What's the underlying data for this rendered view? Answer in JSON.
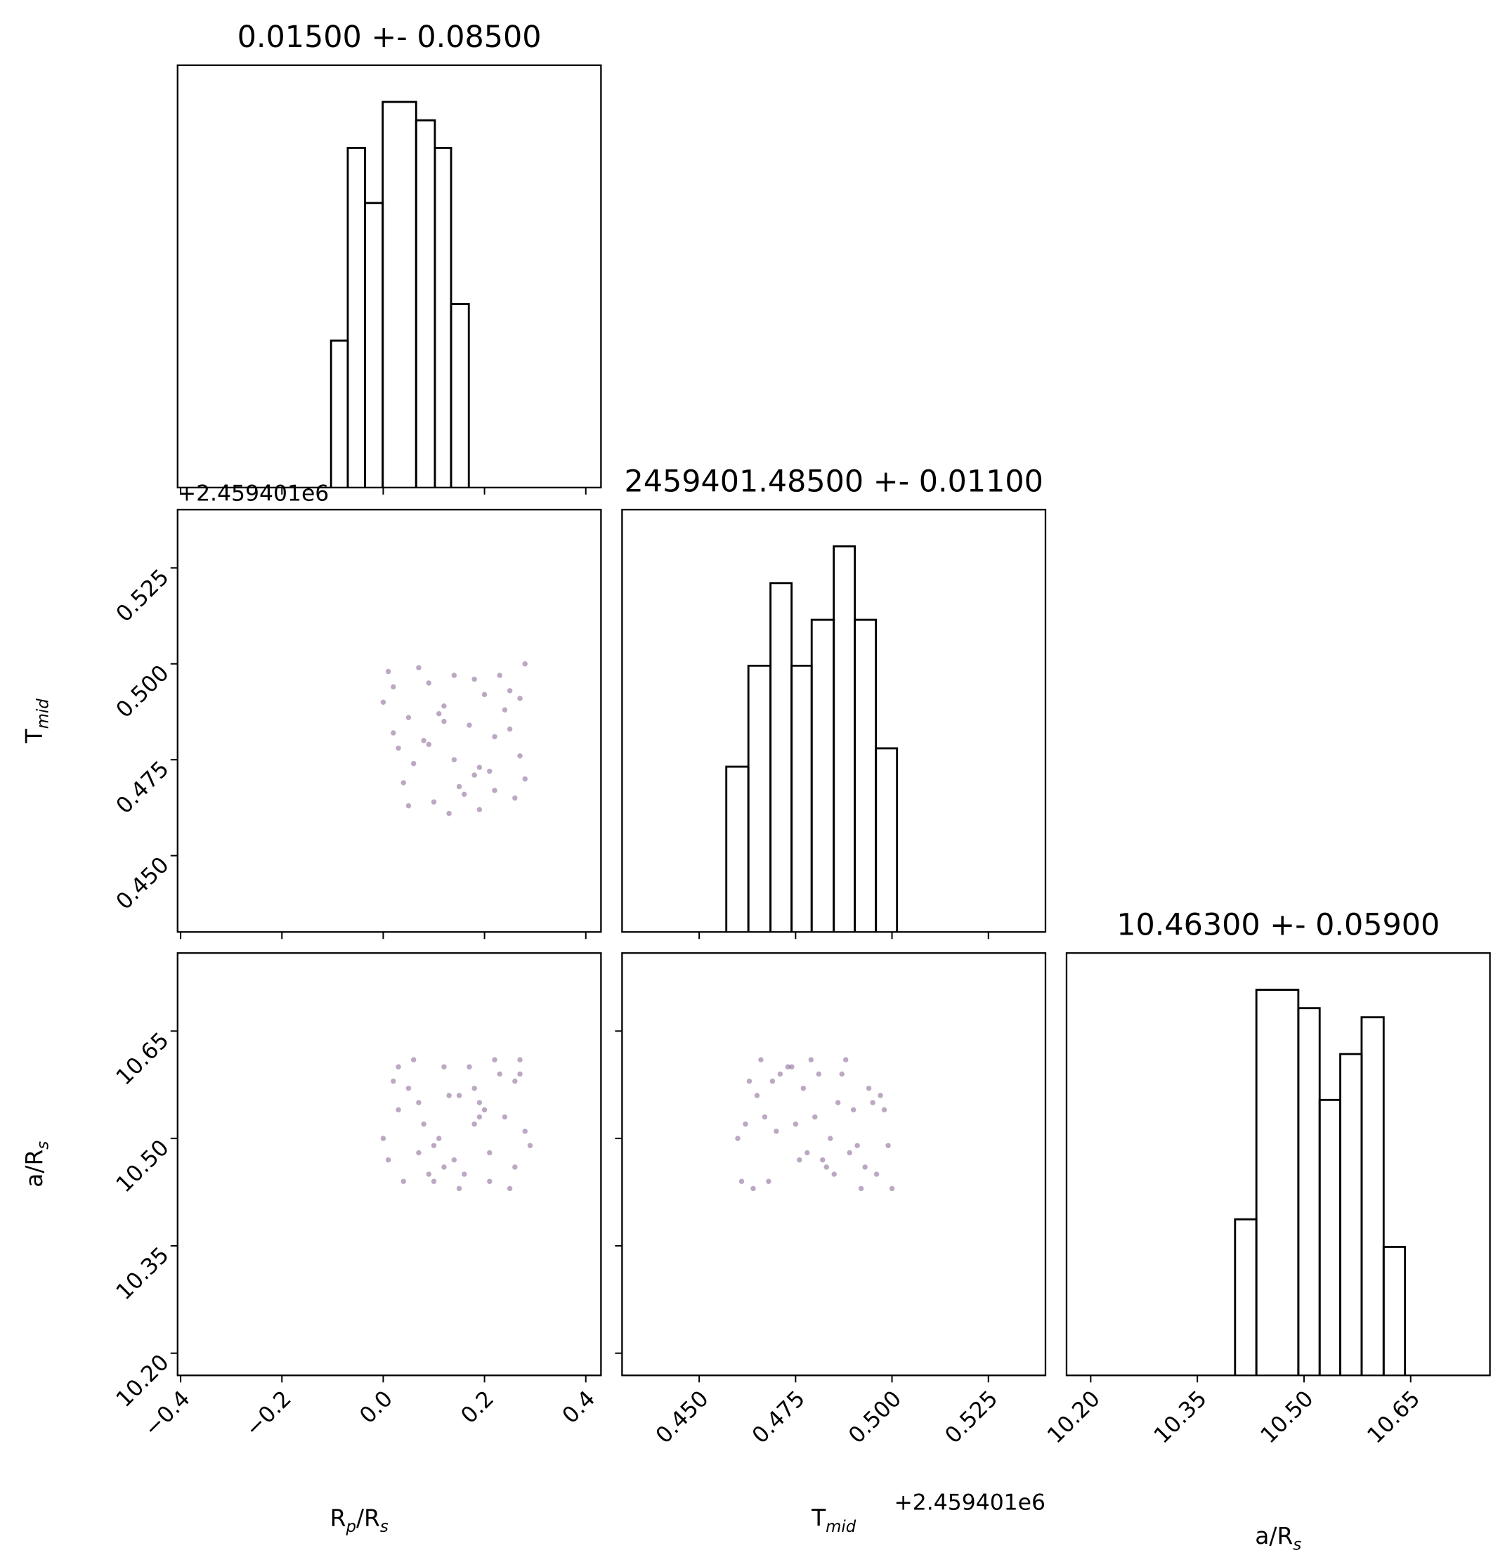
{
  "chart_data": [
    {
      "type": "histogram",
      "title": "0.01500 +- 0.08500",
      "bins": [
        -0.103,
        -0.07,
        -0.036,
        -0.001,
        0.065,
        0.102,
        0.134,
        0.169
      ],
      "counts": [
        16,
        37,
        31,
        42,
        40,
        37,
        20
      ],
      "color": "#000000",
      "xlim": [
        -0.406,
        0.43
      ],
      "ylim": [
        0,
        46
      ],
      "xticks": [
        {
          "value": -0.4,
          "label": "−0.4"
        },
        {
          "value": -0.2,
          "label": "−0.2"
        },
        {
          "value": 0,
          "label": "0.0"
        },
        0.2,
        0.4
      ]
    },
    {
      "type": "scatter",
      "xlim": [
        -0.406,
        0.43
      ],
      "ylim": [
        0.4301,
        0.5402
      ],
      "color": "#6a3d7a",
      "ylabel": "Tmid",
      "yoffset": "+2.459401e6",
      "xticks": [
        {
          "value": -0.4,
          "label": "−0.4"
        },
        {
          "value": -0.2,
          "label": "−0.2"
        },
        {
          "value": 0,
          "label": "0.0"
        },
        0.2,
        0.4
      ],
      "yticks": [
        {
          "value": 0.45,
          "label": "0.450"
        },
        0.475,
        {
          "value": 0.5,
          "label": "0.500"
        },
        0.525
      ],
      "x": [
        0.01,
        0.05,
        0.12,
        0.21,
        0.27,
        0.03,
        0.09,
        0.16,
        0.24,
        0.28,
        0.02,
        0.07,
        0.14,
        0.19,
        0.25,
        0.04,
        0.11,
        0.18,
        0.22,
        0.26,
        0.0,
        0.06,
        0.13,
        0.17,
        0.23,
        0.08,
        0.15,
        0.2,
        0.27,
        0.1,
        0.02,
        0.12,
        0.19,
        0.25,
        0.05,
        0.14,
        0.22,
        0.09,
        0.18,
        0.28
      ],
      "y": [
        0.498,
        0.463,
        0.485,
        0.472,
        0.491,
        0.478,
        0.495,
        0.466,
        0.488,
        0.47,
        0.482,
        0.499,
        0.475,
        0.462,
        0.493,
        0.469,
        0.487,
        0.496,
        0.481,
        0.465,
        0.49,
        0.474,
        0.461,
        0.484,
        0.497,
        0.48,
        0.468,
        0.492,
        0.476,
        0.464,
        0.494,
        0.489,
        0.473,
        0.483,
        0.486,
        0.497,
        0.467,
        0.479,
        0.471,
        0.5
      ]
    },
    {
      "type": "histogram",
      "title": "2459401.48500 +- 0.01100",
      "bins": [
        0.45703,
        0.46276,
        0.46849,
        0.47396,
        0.47917,
        0.4849,
        0.49036,
        0.49583,
        0.5013
      ],
      "counts": [
        18,
        29,
        38,
        29,
        34,
        42,
        34,
        20
      ],
      "color": "#000000",
      "xlim": [
        0.43,
        0.5398
      ],
      "ylim": [
        0,
        46
      ],
      "xticks": [
        {
          "value": 0.45,
          "label": "0.450"
        },
        0.475,
        {
          "value": 0.5,
          "label": "0.500"
        },
        0.525
      ]
    },
    {
      "type": "scatter",
      "xlim": [
        -0.406,
        0.43
      ],
      "ylim": [
        10.169,
        10.759
      ],
      "color": "#6a3d7a",
      "xlabel": "Rp/Rs",
      "ylabel": "a/Rs",
      "xticks": [
        {
          "value": -0.4,
          "label": "−0.4"
        },
        {
          "value": -0.2,
          "label": "−0.2"
        },
        {
          "value": 0,
          "label": "0.0"
        },
        0.2,
        0.4
      ],
      "yticks": [
        {
          "value": 10.2,
          "label": "10.20"
        },
        10.35,
        {
          "value": 10.5,
          "label": "10.50"
        },
        10.65
      ],
      "x": [
        0.03,
        0.1,
        0.18,
        0.26,
        0.01,
        0.07,
        0.15,
        0.22,
        0.29,
        0.05,
        0.12,
        0.2,
        0.27,
        0.0,
        0.09,
        0.17,
        0.24,
        0.04,
        0.13,
        0.21,
        0.28,
        0.06,
        0.14,
        0.19,
        0.25,
        0.02,
        0.11,
        0.16,
        0.23,
        0.08,
        0.26,
        0.18,
        0.03,
        0.12,
        0.21,
        0.07,
        0.15,
        0.27,
        0.1,
        0.19
      ],
      "y": [
        10.6,
        10.44,
        10.52,
        10.58,
        10.47,
        10.55,
        10.43,
        10.61,
        10.49,
        10.57,
        10.46,
        10.54,
        10.59,
        10.5,
        10.45,
        10.6,
        10.53,
        10.44,
        10.56,
        10.48,
        10.51,
        10.61,
        10.47,
        10.55,
        10.43,
        10.58,
        10.5,
        10.45,
        10.59,
        10.52,
        10.46,
        10.57,
        10.54,
        10.6,
        10.44,
        10.48,
        10.56,
        10.61,
        10.49,
        10.53
      ]
    },
    {
      "type": "scatter",
      "xlim": [
        0.43,
        0.5398
      ],
      "ylim": [
        10.169,
        10.759
      ],
      "color": "#6a3d7a",
      "xlabel": "Tmid",
      "xoffset": "+2.459401e6",
      "xticks": [
        {
          "value": 0.45,
          "label": "0.450"
        },
        0.475,
        {
          "value": 0.5,
          "label": "0.500"
        },
        0.525
      ],
      "yticks": [
        {
          "value": 10.2,
          "label": "10.20"
        },
        10.35,
        {
          "value": 10.5,
          "label": "10.50"
        },
        10.65
      ],
      "x": [
        0.462,
        0.471,
        0.485,
        0.497,
        0.466,
        0.478,
        0.49,
        0.5,
        0.46,
        0.474,
        0.483,
        0.494,
        0.468,
        0.48,
        0.488,
        0.499,
        0.463,
        0.476,
        0.486,
        0.492,
        0.47,
        0.481,
        0.496,
        0.465,
        0.473,
        0.489,
        0.498,
        0.461,
        0.477,
        0.484,
        0.493,
        0.467,
        0.479,
        0.491,
        0.469,
        0.482,
        0.495,
        0.464,
        0.475,
        0.487
      ],
      "y": [
        10.52,
        10.59,
        10.45,
        10.56,
        10.61,
        10.48,
        10.54,
        10.43,
        10.5,
        10.6,
        10.46,
        10.57,
        10.44,
        10.53,
        10.61,
        10.49,
        10.58,
        10.47,
        10.55,
        10.43,
        10.51,
        10.59,
        10.45,
        10.56,
        10.6,
        10.48,
        10.54,
        10.44,
        10.57,
        10.5,
        10.46,
        10.53,
        10.61,
        10.49,
        10.58,
        10.47,
        10.55,
        10.43,
        10.52,
        10.59
      ]
    },
    {
      "type": "histogram",
      "title": "10.46300 +- 0.05900",
      "bins": [
        10.403,
        10.433,
        10.492,
        10.522,
        10.551,
        10.581,
        10.612,
        10.642
      ],
      "counts": [
        17,
        42,
        40,
        30,
        35,
        39,
        14
      ],
      "color": "#000000",
      "xlim": [
        10.166,
        10.7615
      ],
      "ylim": [
        0,
        46
      ],
      "xlabel": "a/Rs",
      "xticks": [
        {
          "value": 10.2,
          "label": "10.20"
        },
        10.35,
        {
          "value": 10.5,
          "label": "10.50"
        },
        10.65
      ]
    }
  ]
}
